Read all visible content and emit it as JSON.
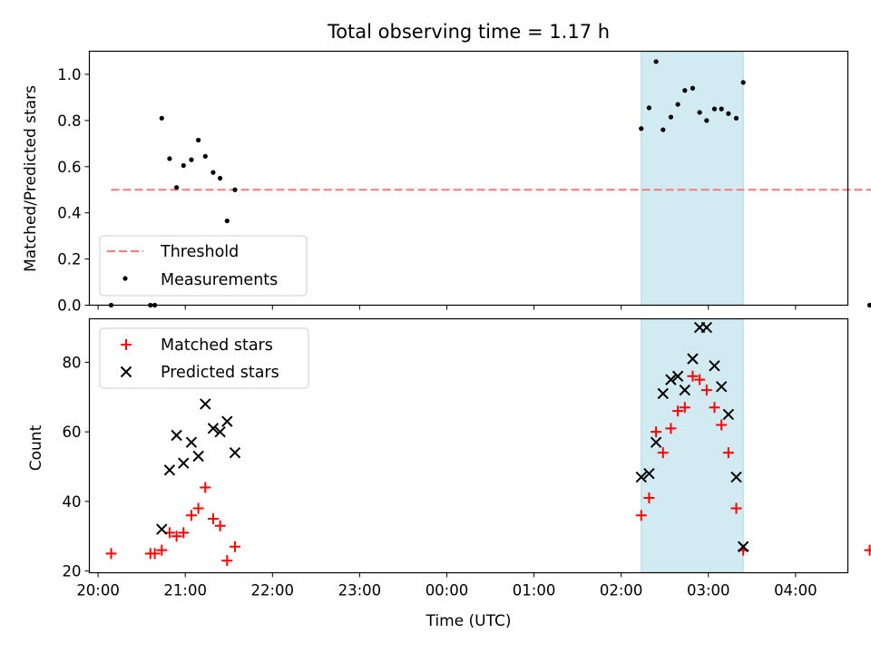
{
  "chart_data": {
    "type": "scatter",
    "title": "Total observing time = 1.17 h",
    "xlabel": "Time (UTC)",
    "x_unit": "hours (UTC, continuing past midnight as 24+)",
    "xlim": [
      19.9,
      28.6
    ],
    "xticks": [
      20,
      21,
      22,
      23,
      24,
      25,
      26,
      27,
      28
    ],
    "xtick_labels": [
      "20:00",
      "21:00",
      "22:00",
      "23:00",
      "00:00",
      "01:00",
      "02:00",
      "03:00",
      "04:00"
    ],
    "shaded_span": {
      "x0": 26.23,
      "x1": 27.4,
      "color": "#add8e6"
    },
    "panels": [
      {
        "ylabel": "Matched/Predicted stars",
        "ylim": [
          0.0,
          1.1
        ],
        "yticks": [
          0.0,
          0.2,
          0.4,
          0.6,
          0.8,
          1.0
        ],
        "ytick_labels": [
          "0.0",
          "0.2",
          "0.4",
          "0.6",
          "0.8",
          "1.0"
        ],
        "legend": {
          "placement": "lower-left",
          "entries": [
            "Threshold",
            "Measurements"
          ]
        },
        "threshold": {
          "name": "Threshold",
          "value": 0.5,
          "x0": 20.15,
          "x1": 28.9,
          "color": "#ff7777"
        },
        "series": [
          {
            "name": "Measurements",
            "marker": "dot",
            "color": "#000000",
            "x": [
              20.15,
              20.6,
              20.65,
              20.73,
              20.82,
              20.9,
              20.98,
              21.07,
              21.15,
              21.23,
              21.32,
              21.4,
              21.48,
              21.57,
              26.23,
              26.32,
              26.4,
              26.48,
              26.57,
              26.65,
              26.73,
              26.82,
              26.9,
              26.98,
              27.07,
              27.15,
              27.23,
              27.32,
              27.4,
              28.85,
              28.9
            ],
            "y": [
              0.0,
              0.0,
              0.0,
              0.81,
              0.635,
              0.51,
              0.605,
              0.63,
              0.715,
              0.645,
              0.575,
              0.55,
              0.365,
              0.5,
              0.765,
              0.855,
              1.055,
              0.76,
              0.815,
              0.87,
              0.93,
              0.94,
              0.835,
              0.8,
              0.85,
              0.85,
              0.83,
              0.81,
              0.965,
              0.0,
              0.0
            ]
          }
        ]
      },
      {
        "ylabel": "Count",
        "ylim": [
          19.5,
          92.5
        ],
        "yticks": [
          20,
          40,
          60,
          80
        ],
        "ytick_labels": [
          "20",
          "40",
          "60",
          "80"
        ],
        "legend": {
          "placement": "upper-left",
          "entries": [
            "Matched stars",
            "Predicted stars"
          ]
        },
        "series": [
          {
            "name": "Matched stars",
            "marker": "plus",
            "color": "#ff0000",
            "x": [
              20.15,
              20.6,
              20.65,
              20.73,
              20.82,
              20.9,
              20.98,
              21.07,
              21.15,
              21.23,
              21.32,
              21.4,
              21.48,
              21.57,
              26.23,
              26.32,
              26.4,
              26.48,
              26.57,
              26.65,
              26.73,
              26.82,
              26.9,
              26.98,
              27.07,
              27.15,
              27.23,
              27.32,
              27.4,
              28.85,
              28.9
            ],
            "y": [
              25,
              25,
              25,
              26,
              31,
              30,
              31,
              36,
              38,
              44,
              35,
              33,
              23,
              27,
              36,
              41,
              60,
              54,
              61,
              66,
              67,
              76,
              75,
              72,
              67,
              62,
              54,
              38,
              26,
              26,
              26
            ]
          },
          {
            "name": "Predicted stars",
            "marker": "x",
            "color": "#000000",
            "x": [
              20.73,
              20.82,
              20.9,
              20.98,
              21.07,
              21.15,
              21.23,
              21.32,
              21.4,
              21.48,
              21.57,
              26.23,
              26.32,
              26.4,
              26.48,
              26.57,
              26.65,
              26.73,
              26.82,
              26.9,
              26.98,
              27.07,
              27.15,
              27.23,
              27.32,
              27.4
            ],
            "y": [
              32,
              49,
              59,
              51,
              57,
              53,
              68,
              61,
              60,
              63,
              54,
              47,
              48,
              57,
              71,
              75,
              76,
              72,
              81,
              90,
              90,
              79,
              73,
              65,
              47,
              27
            ]
          }
        ]
      }
    ]
  }
}
